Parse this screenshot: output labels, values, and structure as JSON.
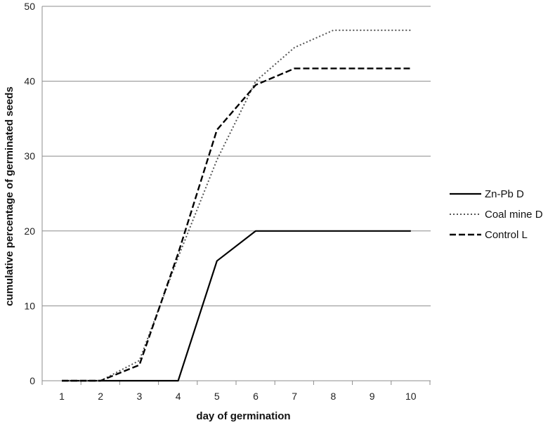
{
  "chart_data": {
    "type": "line",
    "xlabel": "day of germination",
    "ylabel": "cumulative percentage of germinated seeds",
    "x": [
      1,
      2,
      3,
      4,
      5,
      6,
      7,
      8,
      9,
      10
    ],
    "ylim": [
      0,
      50
    ],
    "yticks": [
      0,
      10,
      20,
      30,
      40,
      50
    ],
    "grid": "horizontal",
    "legend_position": "right",
    "series": [
      {
        "name": "Zn-Pb D",
        "style": "solid",
        "color": "#000000",
        "values": [
          0,
          0,
          0,
          0,
          16,
          20,
          20,
          20,
          20,
          20
        ]
      },
      {
        "name": "Coal mine D",
        "style": "dotted",
        "color": "#555555",
        "values": [
          0,
          0,
          2.7,
          16.5,
          29.5,
          40,
          44.5,
          46.8,
          46.8,
          46.8
        ]
      },
      {
        "name": "Control L",
        "style": "dashed",
        "color": "#000000",
        "values": [
          0,
          0,
          2.1,
          17,
          33.5,
          39.5,
          41.7,
          41.7,
          41.7,
          41.7
        ]
      }
    ]
  }
}
